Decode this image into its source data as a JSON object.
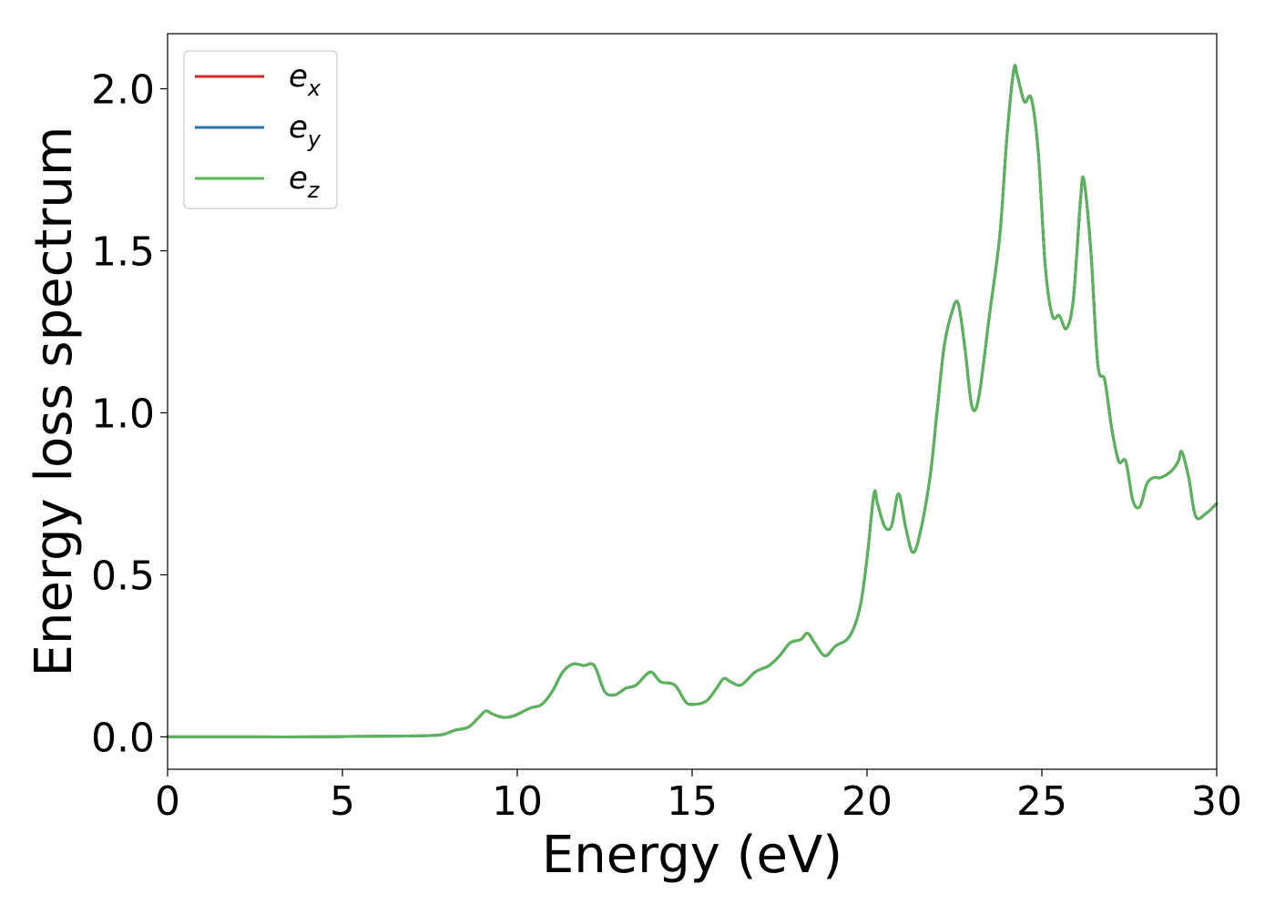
{
  "chart_data": {
    "type": "line",
    "title": "",
    "xlabel": "Energy (eV)",
    "ylabel": "Energy loss spectrum",
    "xlim": [
      0,
      30
    ],
    "ylim": [
      -0.1,
      2.17
    ],
    "xticks": [
      0,
      5,
      10,
      15,
      20,
      25,
      30
    ],
    "yticks": [
      0.0,
      0.5,
      1.0,
      1.5,
      2.0
    ],
    "xtick_labels": [
      "0",
      "5",
      "10",
      "15",
      "20",
      "25",
      "30"
    ],
    "ytick_labels": [
      "0.0",
      "0.5",
      "1.0",
      "1.5",
      "2.0"
    ],
    "grid": false,
    "legend_position": "top-left",
    "x": [
      0,
      2,
      4,
      6,
      7,
      7.8,
      8.2,
      8.6,
      8.9,
      9.1,
      9.3,
      9.6,
      9.9,
      10.2,
      10.4,
      10.7,
      11.0,
      11.3,
      11.6,
      11.9,
      12.2,
      12.5,
      12.8,
      13.1,
      13.4,
      13.8,
      14.1,
      14.5,
      14.8,
      15.0,
      15.4,
      15.7,
      15.9,
      16.1,
      16.4,
      16.8,
      17.2,
      17.5,
      17.8,
      18.1,
      18.3,
      18.5,
      18.8,
      19.1,
      19.5,
      19.8,
      20.0,
      20.2,
      20.3,
      20.5,
      20.7,
      20.9,
      21.1,
      21.3,
      21.5,
      21.8,
      22.0,
      22.2,
      22.4,
      22.6,
      22.8,
      23.0,
      23.2,
      23.5,
      23.8,
      24.0,
      24.2,
      24.3,
      24.5,
      24.7,
      24.9,
      25.1,
      25.3,
      25.5,
      25.7,
      25.9,
      26.1,
      26.2,
      26.4,
      26.6,
      26.8,
      27.0,
      27.2,
      27.4,
      27.6,
      27.8,
      28.0,
      28.2,
      28.4,
      28.7,
      28.9,
      29.0,
      29.2,
      29.4,
      29.7,
      30.0
    ],
    "series": [
      {
        "name": "e_x",
        "color": "#d62728",
        "values": [
          0.0,
          0.0,
          0.0,
          0.002,
          0.003,
          0.006,
          0.02,
          0.03,
          0.06,
          0.08,
          0.07,
          0.06,
          0.065,
          0.08,
          0.09,
          0.1,
          0.14,
          0.2,
          0.225,
          0.22,
          0.22,
          0.14,
          0.13,
          0.15,
          0.16,
          0.2,
          0.17,
          0.16,
          0.11,
          0.1,
          0.11,
          0.15,
          0.18,
          0.17,
          0.16,
          0.2,
          0.22,
          0.25,
          0.29,
          0.3,
          0.32,
          0.29,
          0.25,
          0.28,
          0.31,
          0.4,
          0.55,
          0.75,
          0.72,
          0.65,
          0.65,
          0.75,
          0.65,
          0.57,
          0.62,
          0.8,
          1.0,
          1.2,
          1.3,
          1.34,
          1.2,
          1.02,
          1.05,
          1.3,
          1.55,
          1.85,
          2.06,
          2.04,
          1.96,
          1.97,
          1.8,
          1.45,
          1.3,
          1.3,
          1.26,
          1.35,
          1.65,
          1.72,
          1.5,
          1.15,
          1.1,
          0.95,
          0.85,
          0.85,
          0.73,
          0.71,
          0.78,
          0.8,
          0.8,
          0.82,
          0.85,
          0.88,
          0.8,
          0.68,
          0.69,
          0.72
        ]
      },
      {
        "name": "e_y",
        "color": "#1f77b4",
        "values": [
          0.0,
          0.0,
          0.0,
          0.002,
          0.003,
          0.006,
          0.02,
          0.03,
          0.06,
          0.08,
          0.07,
          0.06,
          0.065,
          0.08,
          0.09,
          0.1,
          0.14,
          0.2,
          0.225,
          0.22,
          0.22,
          0.14,
          0.13,
          0.15,
          0.16,
          0.2,
          0.17,
          0.16,
          0.11,
          0.1,
          0.11,
          0.15,
          0.18,
          0.17,
          0.16,
          0.2,
          0.22,
          0.25,
          0.29,
          0.3,
          0.32,
          0.29,
          0.25,
          0.28,
          0.31,
          0.4,
          0.55,
          0.75,
          0.72,
          0.65,
          0.65,
          0.75,
          0.65,
          0.57,
          0.62,
          0.8,
          1.0,
          1.2,
          1.3,
          1.34,
          1.2,
          1.02,
          1.05,
          1.3,
          1.55,
          1.85,
          2.06,
          2.04,
          1.96,
          1.97,
          1.8,
          1.45,
          1.3,
          1.3,
          1.26,
          1.35,
          1.65,
          1.72,
          1.5,
          1.15,
          1.1,
          0.95,
          0.85,
          0.85,
          0.73,
          0.71,
          0.78,
          0.8,
          0.8,
          0.82,
          0.85,
          0.88,
          0.8,
          0.68,
          0.69,
          0.72
        ]
      },
      {
        "name": "e_z",
        "color": "#5bb35b",
        "values": [
          0.0,
          0.0,
          0.0,
          0.002,
          0.003,
          0.006,
          0.02,
          0.03,
          0.06,
          0.08,
          0.07,
          0.06,
          0.065,
          0.08,
          0.09,
          0.1,
          0.14,
          0.2,
          0.225,
          0.22,
          0.22,
          0.14,
          0.13,
          0.15,
          0.16,
          0.2,
          0.17,
          0.16,
          0.11,
          0.1,
          0.11,
          0.15,
          0.18,
          0.17,
          0.16,
          0.2,
          0.22,
          0.25,
          0.29,
          0.3,
          0.32,
          0.29,
          0.25,
          0.28,
          0.31,
          0.4,
          0.55,
          0.75,
          0.72,
          0.65,
          0.65,
          0.75,
          0.65,
          0.57,
          0.62,
          0.8,
          1.0,
          1.2,
          1.3,
          1.34,
          1.2,
          1.02,
          1.05,
          1.3,
          1.55,
          1.85,
          2.06,
          2.04,
          1.96,
          1.97,
          1.8,
          1.45,
          1.3,
          1.3,
          1.26,
          1.35,
          1.65,
          1.72,
          1.5,
          1.15,
          1.1,
          0.95,
          0.85,
          0.85,
          0.73,
          0.71,
          0.78,
          0.8,
          0.8,
          0.82,
          0.85,
          0.88,
          0.8,
          0.68,
          0.69,
          0.72
        ]
      }
    ],
    "legend": [
      {
        "base": "e",
        "sub": "x",
        "series": "e_x"
      },
      {
        "base": "e",
        "sub": "y",
        "series": "e_y"
      },
      {
        "base": "e",
        "sub": "z",
        "series": "e_z"
      }
    ]
  }
}
